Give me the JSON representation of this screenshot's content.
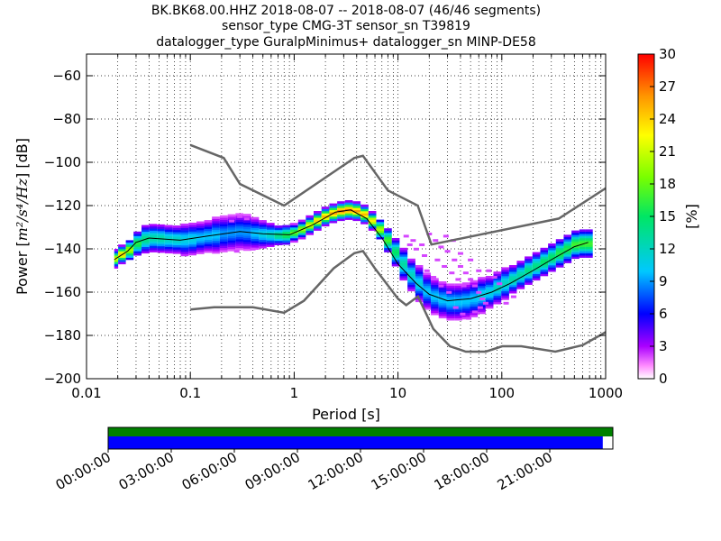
{
  "chart_data": {
    "type": "heatmap",
    "title_lines": [
      "BK.BK68.00.HHZ   2018-08-07 -- 2018-08-07  (46/46 segments)",
      "sensor_type CMG-3T sensor_sn T39819",
      "datalogger_type GuralpMinimus+ datalogger_sn MINP-DE58"
    ],
    "xlabel": "Period [s]",
    "ylabel_prefix": "Power [",
    "ylabel_units": "m²/s⁴/Hz",
    "ylabel_suffix": "] [dB]",
    "xscale": "log",
    "xlim": [
      0.01,
      1000
    ],
    "ylim": [
      -200,
      -50
    ],
    "xticks": [
      {
        "v": 0.01,
        "label": "0.01"
      },
      {
        "v": 0.1,
        "label": "0.1"
      },
      {
        "v": 1,
        "label": "1"
      },
      {
        "v": 10,
        "label": "10"
      },
      {
        "v": 100,
        "label": "100"
      },
      {
        "v": 1000,
        "label": "1000"
      }
    ],
    "yticks": [
      {
        "v": -60,
        "label": "−60"
      },
      {
        "v": -80,
        "label": "−80"
      },
      {
        "v": -100,
        "label": "−100"
      },
      {
        "v": -120,
        "label": "−120"
      },
      {
        "v": -140,
        "label": "−140"
      },
      {
        "v": -160,
        "label": "−160"
      },
      {
        "v": -180,
        "label": "−180"
      },
      {
        "v": -200,
        "label": "−200"
      }
    ],
    "colorbar": {
      "label": "[%]",
      "range": [
        0,
        30
      ],
      "ticks": [
        {
          "v": 0,
          "label": "0"
        },
        {
          "v": 3,
          "label": "3"
        },
        {
          "v": 6,
          "label": "6"
        },
        {
          "v": 9,
          "label": "9"
        },
        {
          "v": 12,
          "label": "12"
        },
        {
          "v": 15,
          "label": "15"
        },
        {
          "v": 18,
          "label": "18"
        },
        {
          "v": 21,
          "label": "21"
        },
        {
          "v": 24,
          "label": "24"
        },
        {
          "v": 27,
          "label": "27"
        },
        {
          "v": 30,
          "label": "30"
        }
      ]
    },
    "noise_models": [
      {
        "points": [
          [
            0.1,
            -92
          ],
          [
            0.21,
            -98
          ],
          [
            0.3,
            -110
          ],
          [
            0.8,
            -120
          ],
          [
            3.8,
            -98
          ],
          [
            4.6,
            -97
          ],
          [
            8,
            -113
          ],
          [
            15.5,
            -120
          ],
          [
            21,
            -138
          ],
          [
            354,
            -126
          ],
          [
            1000,
            -112
          ]
        ]
      },
      {
        "points": [
          [
            0.1,
            -168
          ],
          [
            0.17,
            -167
          ],
          [
            0.4,
            -167
          ],
          [
            0.8,
            -169.5
          ],
          [
            1.24,
            -164
          ],
          [
            2.4,
            -149
          ],
          [
            3.8,
            -142
          ],
          [
            4.6,
            -141
          ],
          [
            6,
            -149
          ],
          [
            10,
            -163
          ],
          [
            12,
            -166
          ],
          [
            15.6,
            -162
          ],
          [
            21.9,
            -177
          ],
          [
            31.6,
            -185
          ],
          [
            45,
            -187.5
          ],
          [
            70,
            -187.5
          ],
          [
            101,
            -185
          ],
          [
            154,
            -185
          ],
          [
            328,
            -187.5
          ],
          [
            600,
            -184.5
          ],
          [
            1000,
            -178.5
          ]
        ]
      }
    ],
    "mode_curve": [
      [
        0.0185,
        -145
      ],
      [
        0.025,
        -141
      ],
      [
        0.03,
        -137
      ],
      [
        0.04,
        -135
      ],
      [
        0.08,
        -136
      ],
      [
        0.15,
        -134
      ],
      [
        0.3,
        -132
      ],
      [
        0.5,
        -133
      ],
      [
        0.9,
        -133.5
      ],
      [
        1.5,
        -129
      ],
      [
        2.5,
        -123
      ],
      [
        3.5,
        -122
      ],
      [
        5,
        -126
      ],
      [
        7,
        -135
      ],
      [
        10,
        -147
      ],
      [
        15,
        -156
      ],
      [
        20,
        -161
      ],
      [
        30,
        -164
      ],
      [
        50,
        -163
      ],
      [
        80,
        -160
      ],
      [
        120,
        -156
      ],
      [
        200,
        -150
      ],
      [
        300,
        -145
      ],
      [
        500,
        -139
      ],
      [
        680,
        -137
      ]
    ],
    "pdf_columns": [
      {
        "x": 0.0185,
        "y": -144.5,
        "spread": 2,
        "peak": 22
      },
      {
        "x": 0.022,
        "y": -142.5,
        "spread": 2,
        "peak": 24
      },
      {
        "x": 0.026,
        "y": -140.5,
        "spread": 2.5,
        "peak": 20
      },
      {
        "x": 0.031,
        "y": -137.5,
        "spread": 3,
        "peak": 16
      },
      {
        "x": 0.037,
        "y": -135.5,
        "spread": 3.5,
        "peak": 14
      },
      {
        "x": 0.044,
        "y": -135,
        "spread": 3.5,
        "peak": 13
      },
      {
        "x": 0.052,
        "y": -135.2,
        "spread": 3.5,
        "peak": 13
      },
      {
        "x": 0.062,
        "y": -135.5,
        "spread": 3.5,
        "peak": 12
      },
      {
        "x": 0.074,
        "y": -135.7,
        "spread": 3.5,
        "peak": 12
      },
      {
        "x": 0.088,
        "y": -135.8,
        "spread": 4,
        "peak": 11
      },
      {
        "x": 0.105,
        "y": -135.4,
        "spread": 4,
        "peak": 11
      },
      {
        "x": 0.125,
        "y": -134.8,
        "spread": 4,
        "peak": 10
      },
      {
        "x": 0.148,
        "y": -134.2,
        "spread": 4,
        "peak": 10
      },
      {
        "x": 0.176,
        "y": -133.6,
        "spread": 4.5,
        "peak": 10
      },
      {
        "x": 0.21,
        "y": -133,
        "spread": 4.5,
        "peak": 9
      },
      {
        "x": 0.25,
        "y": -132.5,
        "spread": 4.5,
        "peak": 9
      },
      {
        "x": 0.297,
        "y": -132,
        "spread": 4.5,
        "peak": 9
      },
      {
        "x": 0.353,
        "y": -132.3,
        "spread": 4.5,
        "peak": 9
      },
      {
        "x": 0.42,
        "y": -132.8,
        "spread": 4,
        "peak": 10
      },
      {
        "x": 0.5,
        "y": -133.2,
        "spread": 3.5,
        "peak": 11
      },
      {
        "x": 0.59,
        "y": -133.5,
        "spread": 3,
        "peak": 12
      },
      {
        "x": 0.71,
        "y": -133.7,
        "spread": 2.5,
        "peak": 14
      },
      {
        "x": 0.84,
        "y": -133.5,
        "spread": 2.5,
        "peak": 16
      },
      {
        "x": 1.0,
        "y": -132.5,
        "spread": 2,
        "peak": 18
      },
      {
        "x": 1.19,
        "y": -131,
        "spread": 2,
        "peak": 20
      },
      {
        "x": 1.41,
        "y": -129,
        "spread": 2,
        "peak": 22
      },
      {
        "x": 1.68,
        "y": -127,
        "spread": 2,
        "peak": 24
      },
      {
        "x": 2.0,
        "y": -125,
        "spread": 2,
        "peak": 25
      },
      {
        "x": 2.38,
        "y": -123.5,
        "spread": 2,
        "peak": 26
      },
      {
        "x": 2.83,
        "y": -122.5,
        "spread": 2,
        "peak": 27
      },
      {
        "x": 3.36,
        "y": -122,
        "spread": 2,
        "peak": 27
      },
      {
        "x": 4.0,
        "y": -122.5,
        "spread": 2,
        "peak": 26
      },
      {
        "x": 4.76,
        "y": -124,
        "spread": 2,
        "peak": 25
      },
      {
        "x": 5.66,
        "y": -127,
        "spread": 2,
        "peak": 23
      },
      {
        "x": 6.73,
        "y": -131,
        "spread": 2.5,
        "peak": 20
      },
      {
        "x": 8.0,
        "y": -136,
        "spread": 3,
        "peak": 17
      },
      {
        "x": 9.51,
        "y": -141.5,
        "spread": 3.5,
        "peak": 15
      },
      {
        "x": 11.3,
        "y": -147,
        "spread": 4,
        "peak": 13
      },
      {
        "x": 13.5,
        "y": -152,
        "spread": 4,
        "peak": 12
      },
      {
        "x": 16.0,
        "y": -156,
        "spread": 4.5,
        "peak": 11
      },
      {
        "x": 19.0,
        "y": -159.5,
        "spread": 4.5,
        "peak": 10
      },
      {
        "x": 22.6,
        "y": -162,
        "spread": 4.5,
        "peak": 10
      },
      {
        "x": 26.9,
        "y": -163.5,
        "spread": 4.5,
        "peak": 10
      },
      {
        "x": 32.0,
        "y": -164.5,
        "spread": 4.5,
        "peak": 10
      },
      {
        "x": 38.1,
        "y": -164.5,
        "spread": 4.5,
        "peak": 10
      },
      {
        "x": 45.3,
        "y": -164,
        "spread": 4.5,
        "peak": 10
      },
      {
        "x": 53.8,
        "y": -163,
        "spread": 4.5,
        "peak": 10
      },
      {
        "x": 64.0,
        "y": -161.5,
        "spread": 4.5,
        "peak": 11
      },
      {
        "x": 76.1,
        "y": -160,
        "spread": 4,
        "peak": 11
      },
      {
        "x": 90.5,
        "y": -158,
        "spread": 4,
        "peak": 12
      },
      {
        "x": 108,
        "y": -156,
        "spread": 4,
        "peak": 12
      },
      {
        "x": 128,
        "y": -154,
        "spread": 3.5,
        "peak": 13
      },
      {
        "x": 152,
        "y": -152,
        "spread": 3.5,
        "peak": 13
      },
      {
        "x": 181,
        "y": -150,
        "spread": 3.5,
        "peak": 14
      },
      {
        "x": 215,
        "y": -148,
        "spread": 3.5,
        "peak": 14
      },
      {
        "x": 256,
        "y": -146,
        "spread": 3.5,
        "peak": 15
      },
      {
        "x": 304,
        "y": -144,
        "spread": 3.5,
        "peak": 15
      },
      {
        "x": 362,
        "y": -142,
        "spread": 3.5,
        "peak": 16
      },
      {
        "x": 430,
        "y": -140,
        "spread": 3.5,
        "peak": 16
      },
      {
        "x": 512,
        "y": -138,
        "spread": 3.5,
        "peak": 17
      },
      {
        "x": 609,
        "y": -137.5,
        "spread": 3.5,
        "peak": 17
      },
      {
        "x": 680,
        "y": -137.5,
        "spread": 3.5,
        "peak": 17
      }
    ],
    "pdf_scatter": [
      [
        0.25,
        -127
      ],
      [
        0.3,
        -125
      ],
      [
        0.35,
        -126
      ],
      [
        0.28,
        -141
      ],
      [
        0.4,
        -140
      ],
      [
        12,
        -134
      ],
      [
        14,
        -136
      ],
      [
        17,
        -138
      ],
      [
        20,
        -133
      ],
      [
        23,
        -136
      ],
      [
        26,
        -139
      ],
      [
        30,
        -141
      ],
      [
        35,
        -145
      ],
      [
        40,
        -148
      ],
      [
        45,
        -151
      ],
      [
        50,
        -154
      ],
      [
        55,
        -157
      ],
      [
        60,
        -160
      ],
      [
        65,
        -163
      ],
      [
        70,
        -165
      ],
      [
        24,
        -145
      ],
      [
        28,
        -148
      ],
      [
        33,
        -151
      ],
      [
        38,
        -154
      ],
      [
        43,
        -157
      ],
      [
        19,
        -150
      ],
      [
        22,
        -153
      ],
      [
        26,
        -157
      ],
      [
        31,
        -160
      ],
      [
        36,
        -167
      ],
      [
        42,
        -170
      ],
      [
        48,
        -172
      ],
      [
        55,
        -169
      ],
      [
        62,
        -167
      ],
      [
        75,
        -150
      ],
      [
        85,
        -153
      ],
      [
        95,
        -156
      ],
      [
        60,
        -150
      ],
      [
        50,
        -145
      ],
      [
        40,
        -142
      ],
      [
        18,
        -143
      ],
      [
        15,
        -140
      ],
      [
        13,
        -138
      ],
      [
        34,
        -136
      ],
      [
        29,
        -134
      ],
      [
        110,
        -165
      ],
      [
        130,
        -162
      ]
    ],
    "data_availability": {
      "time_labels": [
        "00:00:00",
        "03:00:00",
        "06:00:00",
        "09:00:00",
        "12:00:00",
        "15:00:00",
        "18:00:00",
        "21:00:00"
      ],
      "processed_fraction": 0.98,
      "colors": {
        "available": "#008000",
        "processed": "#0000ff"
      }
    }
  }
}
